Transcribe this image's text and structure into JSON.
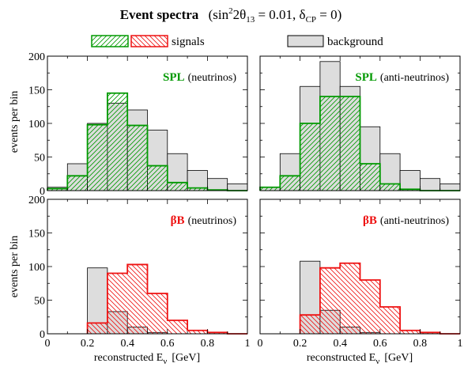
{
  "title": {
    "main": "Event spectra",
    "params": "(sin²2θ₁₃ = 0.01,  δCP = 0)",
    "parts": {
      "open": "(sin",
      "sup2": "2",
      "theta": "2θ",
      "sub13": "13",
      "eq": " = 0.01,  δ",
      "subcp": "CP",
      "close": " = 0)"
    }
  },
  "legend": {
    "signals": "signals",
    "background": "background"
  },
  "colors": {
    "green": "#009900",
    "red": "#ee1111",
    "background_fill": "#dddddd",
    "edge": "#000000"
  },
  "axes": {
    "xlabel_main": "reconstructed E",
    "xlabel_sub": "ν",
    "xlabel_unit": "[GeV]",
    "ylabel": "events per bin",
    "x_ticks": [
      "0",
      "0.2",
      "0.4",
      "0.6",
      "0.8",
      "1"
    ],
    "y_ticks": [
      "0",
      "50",
      "100",
      "150",
      "200"
    ]
  },
  "chart_data": [
    {
      "type": "bar",
      "id": "spl-neutrinos",
      "label_bold": "SPL",
      "label_rest": "(neutrinos)",
      "bin_edges": [
        0,
        0.1,
        0.2,
        0.3,
        0.4,
        0.5,
        0.6,
        0.7,
        0.8,
        0.9,
        1.0
      ],
      "xlim": [
        0,
        1
      ],
      "ylim": [
        0,
        200
      ],
      "series": [
        {
          "name": "background",
          "values": [
            5,
            40,
            100,
            130,
            120,
            90,
            55,
            30,
            18,
            10
          ]
        },
        {
          "name": "signals",
          "values": [
            3,
            22,
            98,
            145,
            97,
            37,
            12,
            4,
            1,
            0
          ]
        }
      ]
    },
    {
      "type": "bar",
      "id": "spl-antineutrinos",
      "label_bold": "SPL",
      "label_rest": "(anti-neutrinos)",
      "bin_edges": [
        0,
        0.1,
        0.2,
        0.3,
        0.4,
        0.5,
        0.6,
        0.7,
        0.8,
        0.9,
        1.0
      ],
      "xlim": [
        0,
        1
      ],
      "ylim": [
        0,
        200
      ],
      "series": [
        {
          "name": "background",
          "values": [
            5,
            55,
            155,
            192,
            155,
            95,
            55,
            30,
            18,
            10
          ]
        },
        {
          "name": "signals",
          "values": [
            5,
            22,
            100,
            140,
            140,
            40,
            10,
            2,
            0,
            0
          ]
        }
      ]
    },
    {
      "type": "bar",
      "id": "betabeam-neutrinos",
      "label_bold": "βB",
      "label_rest": "(neutrinos)",
      "bin_edges": [
        0,
        0.1,
        0.2,
        0.3,
        0.4,
        0.5,
        0.6,
        0.7,
        0.8,
        0.9,
        1.0
      ],
      "xlim": [
        0,
        1
      ],
      "ylim": [
        0,
        200
      ],
      "series": [
        {
          "name": "background",
          "values": [
            0,
            0,
            98,
            33,
            10,
            2,
            0,
            0,
            0,
            0
          ]
        },
        {
          "name": "signals",
          "values": [
            0,
            0,
            16,
            90,
            103,
            60,
            20,
            5,
            2,
            0
          ]
        }
      ]
    },
    {
      "type": "bar",
      "id": "betabeam-antineutrinos",
      "label_bold": "βB",
      "label_rest": "(anti-neutrinos)",
      "bin_edges": [
        0,
        0.1,
        0.2,
        0.3,
        0.4,
        0.5,
        0.6,
        0.7,
        0.8,
        0.9,
        1.0
      ],
      "xlim": [
        0,
        1
      ],
      "ylim": [
        0,
        200
      ],
      "series": [
        {
          "name": "background",
          "values": [
            0,
            0,
            108,
            35,
            10,
            2,
            0,
            0,
            0,
            0
          ]
        },
        {
          "name": "signals",
          "values": [
            0,
            0,
            28,
            98,
            105,
            80,
            40,
            5,
            2,
            0
          ]
        }
      ]
    }
  ]
}
